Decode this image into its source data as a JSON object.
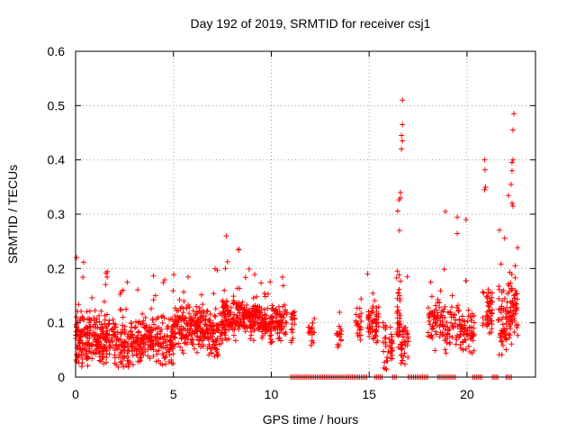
{
  "chart_data": {
    "type": "scatter",
    "title": "Day 192 of 2019, SRMTID for receiver csj1",
    "xlabel": "GPS time / hours",
    "ylabel": "SRMTID / TECUs",
    "xlim": [
      0,
      23.5
    ],
    "ylim": [
      0,
      0.6
    ],
    "xticks": [
      0,
      5,
      10,
      15,
      20
    ],
    "xtick_labels": [
      "0",
      "5",
      "10",
      "15",
      "20"
    ],
    "yticks": [
      0,
      0.1,
      0.2,
      0.3,
      0.4,
      0.5,
      0.6
    ],
    "ytick_labels": [
      "0",
      "0.1",
      "0.2",
      "0.3",
      "0.4",
      "0.5",
      "0.6"
    ],
    "grid": true,
    "marker": "+",
    "color": "#ff0000",
    "series": [
      {
        "name": "SRMTID",
        "segments": [
          {
            "t0": 0.0,
            "t1": 0.8,
            "base": 0.07,
            "spread": 0.07,
            "max": 0.22,
            "n": 120
          },
          {
            "t0": 0.8,
            "t1": 2.0,
            "base": 0.07,
            "spread": 0.06,
            "max": 0.2,
            "n": 140
          },
          {
            "t0": 2.0,
            "t1": 3.5,
            "base": 0.06,
            "spread": 0.06,
            "max": 0.19,
            "n": 160
          },
          {
            "t0": 3.5,
            "t1": 5.0,
            "base": 0.07,
            "spread": 0.06,
            "max": 0.19,
            "n": 160
          },
          {
            "t0": 5.0,
            "t1": 6.5,
            "base": 0.09,
            "spread": 0.06,
            "max": 0.2,
            "n": 170
          },
          {
            "t0": 6.5,
            "t1": 7.5,
            "base": 0.08,
            "spread": 0.06,
            "max": 0.2,
            "n": 110
          },
          {
            "t0": 7.5,
            "t1": 8.5,
            "base": 0.11,
            "spread": 0.06,
            "max": 0.26,
            "n": 120
          },
          {
            "t0": 8.5,
            "t1": 9.5,
            "base": 0.11,
            "spread": 0.05,
            "max": 0.2,
            "n": 120
          },
          {
            "t0": 9.5,
            "t1": 10.8,
            "base": 0.1,
            "spread": 0.05,
            "max": 0.19,
            "n": 130
          },
          {
            "t0": 11.0,
            "t1": 11.2,
            "base": 0.09,
            "spread": 0.05,
            "max": 0.15,
            "n": 18
          },
          {
            "t0": 11.9,
            "t1": 12.2,
            "base": 0.09,
            "spread": 0.04,
            "max": 0.13,
            "n": 18
          },
          {
            "t0": 13.3,
            "t1": 13.6,
            "base": 0.08,
            "spread": 0.04,
            "max": 0.12,
            "n": 18
          },
          {
            "t0": 14.3,
            "t1": 14.6,
            "base": 0.1,
            "spread": 0.05,
            "max": 0.17,
            "n": 24
          },
          {
            "t0": 14.9,
            "t1": 15.5,
            "base": 0.1,
            "spread": 0.06,
            "max": 0.23,
            "n": 60
          },
          {
            "t0": 15.7,
            "t1": 16.2,
            "base": 0.06,
            "spread": 0.06,
            "max": 0.2,
            "n": 40
          },
          {
            "t0": 16.4,
            "t1": 16.6,
            "base": 0.12,
            "spread": 0.1,
            "max": 0.34,
            "n": 40
          },
          {
            "t0": 16.6,
            "t1": 17.0,
            "base": 0.06,
            "spread": 0.06,
            "max": 0.2,
            "n": 40
          },
          {
            "t0": 18.0,
            "t1": 18.6,
            "base": 0.11,
            "spread": 0.07,
            "max": 0.26,
            "n": 50
          },
          {
            "t0": 18.6,
            "t1": 19.6,
            "base": 0.1,
            "spread": 0.07,
            "max": 0.3,
            "n": 70
          },
          {
            "t0": 19.6,
            "t1": 20.4,
            "base": 0.08,
            "spread": 0.07,
            "max": 0.29,
            "n": 70
          },
          {
            "t0": 20.8,
            "t1": 21.3,
            "base": 0.12,
            "spread": 0.08,
            "max": 0.4,
            "n": 50
          },
          {
            "t0": 21.6,
            "t1": 22.1,
            "base": 0.1,
            "spread": 0.08,
            "max": 0.28,
            "n": 60
          },
          {
            "t0": 22.1,
            "t1": 22.6,
            "base": 0.12,
            "spread": 0.09,
            "max": 0.4,
            "n": 70
          }
        ],
        "peaks": [
          {
            "x": 16.7,
            "y": 0.51
          },
          {
            "x": 16.7,
            "y": 0.465
          },
          {
            "x": 16.65,
            "y": 0.445
          },
          {
            "x": 16.7,
            "y": 0.435
          },
          {
            "x": 16.65,
            "y": 0.42
          },
          {
            "x": 16.6,
            "y": 0.34
          },
          {
            "x": 16.6,
            "y": 0.33
          },
          {
            "x": 16.55,
            "y": 0.27
          },
          {
            "x": 18.9,
            "y": 0.305
          },
          {
            "x": 19.95,
            "y": 0.29
          },
          {
            "x": 20.9,
            "y": 0.4
          },
          {
            "x": 20.95,
            "y": 0.35
          },
          {
            "x": 20.9,
            "y": 0.345
          },
          {
            "x": 22.4,
            "y": 0.485
          },
          {
            "x": 22.35,
            "y": 0.455
          },
          {
            "x": 22.35,
            "y": 0.4
          },
          {
            "x": 22.3,
            "y": 0.395
          },
          {
            "x": 22.3,
            "y": 0.38
          },
          {
            "x": 22.25,
            "y": 0.355
          },
          {
            "x": 22.3,
            "y": 0.32
          },
          {
            "x": 22.35,
            "y": 0.315
          },
          {
            "x": 7.7,
            "y": 0.26
          },
          {
            "x": 0.05,
            "y": 0.22
          }
        ],
        "zero_runs": [
          {
            "t0": 11.0,
            "t1": 14.9
          },
          {
            "t0": 15.3,
            "t1": 15.7
          },
          {
            "t0": 16.2,
            "t1": 16.45
          },
          {
            "t0": 17.0,
            "t1": 18.0
          },
          {
            "t0": 18.5,
            "t1": 19.4
          },
          {
            "t0": 20.3,
            "t1": 20.8
          },
          {
            "t0": 21.3,
            "t1": 21.6
          },
          {
            "t0": 22.0,
            "t1": 22.3
          }
        ]
      }
    ]
  }
}
